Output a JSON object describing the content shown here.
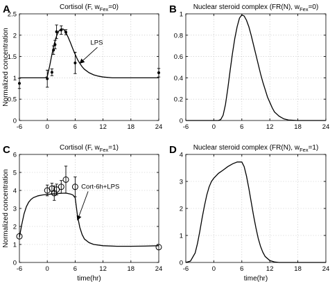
{
  "figure": {
    "xlabel_shared": "time(hr)"
  },
  "chart_data": [
    {
      "id": "A",
      "type": "line",
      "panel_label": "A",
      "title": "Cortisol (F, w",
      "title_sub": "Fex",
      "title_tail": "=0)",
      "xlabel": "",
      "ylabel": "Normalized concentration",
      "xlim": [
        -6,
        24
      ],
      "ylim": [
        0,
        2.5
      ],
      "xticks": [
        -6,
        0,
        6,
        12,
        18,
        24
      ],
      "yticks": [
        0,
        0.5,
        1,
        1.5,
        2,
        2.5
      ],
      "ytick_labels": [
        "0",
        "0.5",
        "1",
        "1.5",
        "2",
        "2.5"
      ],
      "grid": true,
      "series": [
        {
          "kind": "model-curve",
          "x": [
            -6,
            -2,
            -0.5,
            0,
            0.5,
            1,
            1.5,
            2,
            2.5,
            3,
            3.5,
            4,
            4.5,
            5,
            5.5,
            6,
            6.5,
            7,
            7.5,
            8,
            9,
            10,
            11,
            12,
            14,
            16,
            18,
            20,
            22,
            24
          ],
          "y": [
            1.0,
            1.0,
            1.0,
            1.03,
            1.27,
            1.55,
            1.8,
            1.98,
            2.1,
            2.15,
            2.14,
            2.06,
            1.95,
            1.82,
            1.68,
            1.55,
            1.43,
            1.34,
            1.26,
            1.2,
            1.12,
            1.07,
            1.04,
            1.02,
            1.0,
            1.0,
            1.0,
            1.0,
            1.0,
            1.0
          ]
        },
        {
          "kind": "data-points",
          "marker": "dot",
          "x": [
            -6,
            0,
            1,
            1.33,
            1.67,
            2,
            3,
            4,
            6,
            24
          ],
          "y": [
            0.87,
            0.98,
            1.13,
            1.65,
            1.78,
            2.08,
            2.12,
            2.07,
            1.35,
            1.12
          ],
          "err": [
            0.12,
            0.2,
            0.08,
            0.1,
            0.1,
            0.16,
            0.1,
            0.06,
            0.25,
            0.1
          ]
        }
      ],
      "annotation": {
        "text": "LPS",
        "point": [
          7,
          1.34
        ],
        "text_at": [
          9.3,
          1.78
        ]
      }
    },
    {
      "id": "B",
      "type": "line",
      "panel_label": "B",
      "title": "Nuclear steroid complex (FR(N), w",
      "title_sub": "Fex",
      "title_tail": "=0)",
      "xlabel": "",
      "ylabel": "",
      "xlim": [
        -6,
        24
      ],
      "ylim": [
        0,
        1
      ],
      "xticks": [
        -6,
        0,
        6,
        12,
        18,
        24
      ],
      "yticks": [
        0,
        0.2,
        0.4,
        0.6,
        0.8,
        1
      ],
      "ytick_labels": [
        "0",
        "0.2",
        "0.4",
        "0.6",
        "0.8",
        "1"
      ],
      "grid": true,
      "series": [
        {
          "kind": "model-curve",
          "x": [
            -6,
            0,
            1,
            1.5,
            2,
            2.5,
            3,
            3.5,
            4,
            4.5,
            5,
            5.5,
            6,
            6.5,
            7,
            7.5,
            8,
            8.5,
            9,
            9.5,
            10,
            10.5,
            11,
            11.5,
            12,
            12.5,
            13,
            14,
            15,
            16,
            18,
            20,
            22,
            24
          ],
          "y": [
            0,
            0,
            0,
            0.01,
            0.05,
            0.15,
            0.3,
            0.47,
            0.63,
            0.77,
            0.88,
            0.96,
            0.99,
            0.98,
            0.94,
            0.88,
            0.8,
            0.71,
            0.62,
            0.53,
            0.44,
            0.36,
            0.29,
            0.22,
            0.17,
            0.12,
            0.08,
            0.04,
            0.015,
            0.005,
            0,
            0,
            0,
            0
          ]
        }
      ]
    },
    {
      "id": "C",
      "type": "line",
      "panel_label": "C",
      "title": "Cortisol (F, w",
      "title_sub": "Fex",
      "title_tail": "=1)",
      "xlabel": "time(hr)",
      "ylabel": "Normalized concentration",
      "xlim": [
        -6,
        24
      ],
      "ylim": [
        0,
        6
      ],
      "xticks": [
        -6,
        0,
        6,
        12,
        18,
        24
      ],
      "yticks": [
        0,
        1,
        2,
        3,
        4,
        5,
        6
      ],
      "ytick_labels": [
        "0",
        "1",
        "2",
        "3",
        "4",
        "5",
        "6"
      ],
      "grid": true,
      "series": [
        {
          "kind": "model-curve",
          "x": [
            -6,
            -5.5,
            -5,
            -4.5,
            -4,
            -3.5,
            -3,
            -2,
            -1,
            0,
            1,
            2,
            3,
            4,
            5,
            5.5,
            6,
            6.2,
            6.5,
            7,
            7.5,
            8,
            9,
            10,
            12,
            15,
            18,
            21,
            24
          ],
          "y": [
            1.4,
            2.1,
            2.7,
            3.1,
            3.35,
            3.5,
            3.6,
            3.7,
            3.75,
            3.78,
            3.8,
            3.82,
            3.84,
            3.85,
            3.8,
            3.75,
            3.6,
            3.2,
            2.6,
            1.95,
            1.55,
            1.3,
            1.1,
            1.0,
            0.93,
            0.9,
            0.9,
            0.91,
            0.93
          ]
        },
        {
          "kind": "data-points",
          "marker": "circle",
          "x": [
            -6,
            0,
            1,
            1.5,
            2,
            3,
            4,
            6,
            24
          ],
          "y": [
            1.45,
            4.0,
            4.1,
            3.85,
            4.05,
            4.2,
            4.6,
            4.2,
            0.85
          ],
          "err": [
            0,
            0.3,
            0.3,
            0.4,
            0.3,
            0.35,
            0.75,
            0.55,
            0
          ]
        }
      ],
      "annotation": {
        "text": "Cort-6h+LPS",
        "point": [
          6.5,
          2.35
        ],
        "text_at": [
          7.3,
          4.1
        ]
      }
    },
    {
      "id": "D",
      "type": "line",
      "panel_label": "D",
      "title": "Nuclear steroid  complex (FR(N), w",
      "title_sub": "Fex",
      "title_tail": "=1)",
      "xlabel": "time(hr)",
      "ylabel": "",
      "xlim": [
        -6,
        24
      ],
      "ylim": [
        0,
        4
      ],
      "xticks": [
        -6,
        0,
        6,
        12,
        18,
        24
      ],
      "yticks": [
        0,
        1,
        2,
        3,
        4
      ],
      "ytick_labels": [
        "0",
        "1",
        "2",
        "3",
        "4"
      ],
      "grid": true,
      "series": [
        {
          "kind": "model-curve",
          "x": [
            -6,
            -5,
            -4,
            -3.5,
            -3,
            -2.5,
            -2,
            -1.5,
            -1,
            -0.5,
            0,
            1,
            2,
            3,
            4,
            5,
            6,
            6.5,
            7,
            7.5,
            8,
            8.5,
            9,
            9.5,
            10,
            10.5,
            11,
            12,
            13,
            14,
            16,
            18,
            20,
            22,
            24
          ],
          "y": [
            0,
            0.05,
            0.35,
            0.7,
            1.15,
            1.65,
            2.1,
            2.5,
            2.8,
            3.0,
            3.12,
            3.3,
            3.42,
            3.55,
            3.65,
            3.72,
            3.72,
            3.55,
            3.2,
            2.75,
            2.25,
            1.75,
            1.3,
            0.9,
            0.6,
            0.38,
            0.22,
            0.07,
            0.02,
            0,
            0,
            0,
            0,
            0,
            0
          ]
        }
      ]
    }
  ]
}
